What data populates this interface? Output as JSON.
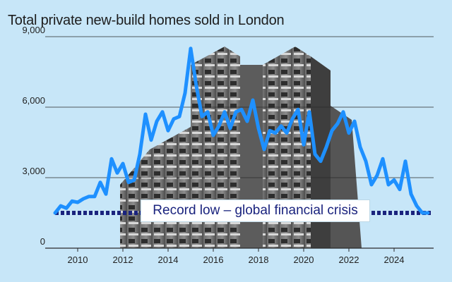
{
  "chart_data": {
    "type": "line",
    "title": "Total private new-build homes sold in London",
    "xlabel": "",
    "ylabel": "",
    "ylim": [
      0,
      9000
    ],
    "xlim": [
      2009.0,
      2025.75
    ],
    "yticks": [
      0,
      3000,
      6000,
      9000
    ],
    "ytick_labels": [
      "0",
      "3,000",
      "6,000",
      "9,000"
    ],
    "xticks": [
      2010,
      2012,
      2014,
      2016,
      2018,
      2020,
      2022,
      2024
    ],
    "xtick_labels": [
      "2010",
      "2012",
      "2014",
      "2016",
      "2018",
      "2020",
      "2022",
      "2024"
    ],
    "grid": "horizontal",
    "series": [
      {
        "color": "#1e90ff",
        "x": [
          2009.0,
          2009.25,
          2009.5,
          2009.75,
          2010.0,
          2010.25,
          2010.5,
          2010.75,
          2011.0,
          2011.25,
          2011.5,
          2011.75,
          2012.0,
          2012.25,
          2012.5,
          2012.75,
          2013.0,
          2013.25,
          2013.5,
          2013.75,
          2014.0,
          2014.25,
          2014.5,
          2014.75,
          2015.0,
          2015.25,
          2015.5,
          2015.75,
          2016.0,
          2016.25,
          2016.5,
          2016.75,
          2017.0,
          2017.25,
          2017.5,
          2017.75,
          2018.0,
          2018.25,
          2018.5,
          2018.75,
          2019.0,
          2019.25,
          2019.5,
          2019.75,
          2020.0,
          2020.25,
          2020.5,
          2020.75,
          2021.0,
          2021.25,
          2021.5,
          2021.75,
          2022.0,
          2022.25,
          2022.5,
          2022.75,
          2023.0,
          2023.25,
          2023.5,
          2023.75,
          2024.0,
          2024.25,
          2024.5,
          2024.75,
          2025.0,
          2025.25,
          2025.5
        ],
        "y": [
          1500,
          1800,
          1700,
          2000,
          1950,
          2100,
          2200,
          2200,
          2800,
          2300,
          3800,
          3200,
          3600,
          2800,
          2900,
          4000,
          5700,
          4600,
          5400,
          5800,
          5000,
          5500,
          5600,
          6600,
          8500,
          6900,
          5600,
          5800,
          4800,
          5200,
          5800,
          5100,
          5800,
          5900,
          5400,
          6300,
          5100,
          4200,
          5000,
          4900,
          5200,
          4900,
          5500,
          5900,
          4400,
          5800,
          4000,
          3700,
          4300,
          5000,
          5300,
          5800,
          4900,
          5400,
          4300,
          3700,
          2700,
          3100,
          3800,
          2700,
          2900,
          2500,
          3700,
          2300,
          1800,
          1500,
          1500
        ]
      }
    ],
    "annotation": {
      "text": "Record low – global financial crisis",
      "value": 1500
    }
  }
}
